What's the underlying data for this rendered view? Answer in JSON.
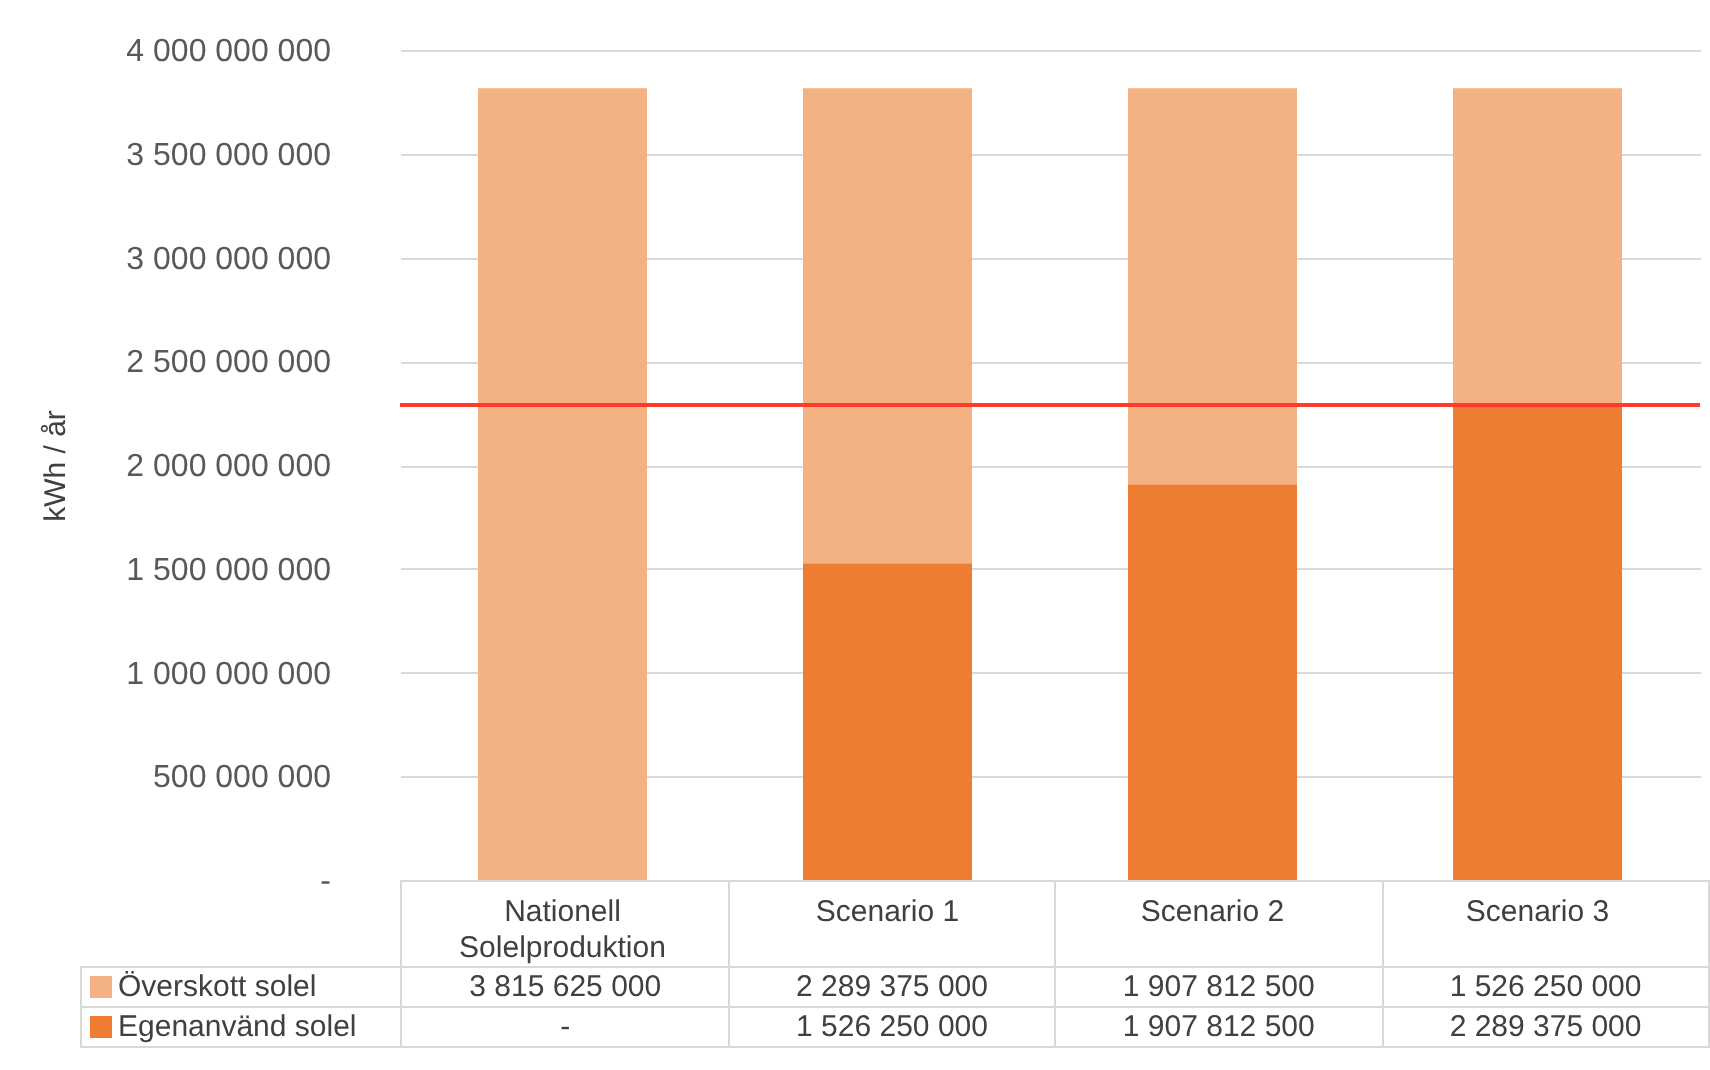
{
  "chart_data": {
    "type": "bar",
    "stacked": true,
    "ylabel": "kWh / år",
    "categories": [
      "Nationell Solelproduktion",
      "Scenario 1",
      "Scenario 2",
      "Scenario 3"
    ],
    "series": [
      {
        "name": "Egenanvänd solel",
        "color": "#ed7d31",
        "values": [
          0,
          1526250000,
          1907812500,
          2289375000
        ],
        "value_labels": [
          "-",
          "1 526 250 000",
          "1 907 812 500",
          "2 289 375 000"
        ]
      },
      {
        "name": "Överskott solel",
        "color": "#f4b183",
        "values": [
          3815625000,
          2289375000,
          1907812500,
          1526250000
        ],
        "value_labels": [
          "3 815 625 000",
          "2 289 375 000",
          "1 907 812 500",
          "1 526 250 000"
        ]
      }
    ],
    "ylim": [
      0,
      4000000000
    ],
    "yticks": [
      {
        "value": 0,
        "label": "-"
      },
      {
        "value": 500000000,
        "label": "500 000 000"
      },
      {
        "value": 1000000000,
        "label": "1 000 000 000"
      },
      {
        "value": 1500000000,
        "label": "1 500 000 000"
      },
      {
        "value": 2000000000,
        "label": "2 000 000 000"
      },
      {
        "value": 2500000000,
        "label": "2 500 000 000"
      },
      {
        "value": 3000000000,
        "label": "3 000 000 000"
      },
      {
        "value": 3500000000,
        "label": "3 500 000 000"
      },
      {
        "value": 4000000000,
        "label": "4 000 000 000"
      }
    ],
    "ref_lines": [
      {
        "axis": "y",
        "value": 2289375000,
        "color": "#ff3b30"
      }
    ],
    "grid": "y",
    "legend": "bottom"
  }
}
